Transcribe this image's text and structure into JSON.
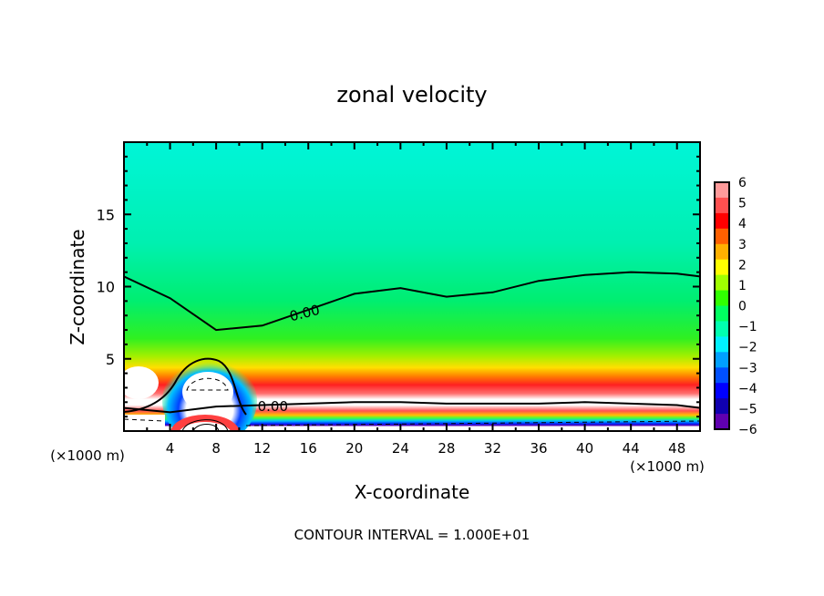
{
  "chart_data": {
    "type": "heatmap",
    "title": "zonal velocity",
    "xlabel": "X-coordinate",
    "ylabel": "Z-coordinate",
    "x_unit_label": "(×1000 m)",
    "z_unit_label": "(×1000 m)",
    "xlim": [
      0,
      50
    ],
    "ylim": [
      0,
      20
    ],
    "x_ticks": [
      4,
      8,
      12,
      16,
      20,
      24,
      28,
      32,
      36,
      40,
      44,
      48
    ],
    "y_ticks": [
      5,
      10,
      15
    ],
    "footer": "CONTOUR INTERVAL = 1.000E+01",
    "contour_labels": [
      "0.00",
      "0.00"
    ],
    "colorbar": {
      "ticks": [
        "6",
        "5",
        "4",
        "3",
        "2",
        "1",
        "0",
        "−1",
        "−2",
        "−3",
        "−4",
        "−5",
        "−6"
      ],
      "range": [
        -6,
        6
      ],
      "colors": [
        "#ff9a9a",
        "#ff5050",
        "#ff0000",
        "#ff6000",
        "#ffb000",
        "#ffff00",
        "#a0ff00",
        "#30ff00",
        "#00ff60",
        "#00ffb0",
        "#00f0ff",
        "#00a0ff",
        "#0050ff",
        "#0000ff",
        "#1000b0",
        "#6000b0"
      ]
    },
    "zero_contour_upper": {
      "x": [
        0,
        4,
        8,
        12,
        16,
        20,
        24,
        28,
        32,
        36,
        40,
        44,
        48,
        50
      ],
      "z": [
        10.7,
        9.2,
        7.0,
        7.3,
        8.4,
        9.5,
        9.9,
        9.3,
        9.6,
        10.4,
        10.8,
        11.0,
        10.9,
        10.7
      ]
    },
    "zero_contour_lower": {
      "x": [
        0,
        4,
        8,
        12,
        16,
        20,
        24,
        28,
        32,
        36,
        40,
        44,
        48,
        50
      ],
      "z": [
        1.6,
        1.3,
        1.7,
        1.8,
        1.9,
        2.0,
        2.0,
        1.9,
        1.9,
        1.9,
        2.0,
        1.9,
        1.8,
        1.6
      ]
    }
  }
}
